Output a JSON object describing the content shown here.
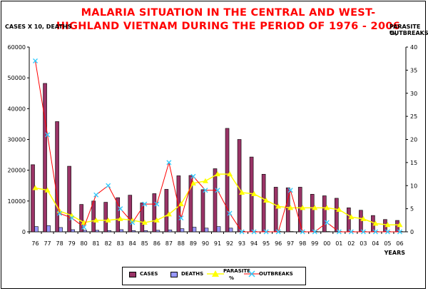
{
  "chart_data": {
    "type": "bar",
    "title_line1": "MALARIA SITUATION IN THE CENTRAL AND WEST-",
    "title_line2": "HIGHLAND VIETNAM DURING THE PERIOD OF 1976 - 2006",
    "ylabel_left": "CASES X 10, DEATHS",
    "ylabel_right_line1": "PARASITE %,",
    "ylabel_right_line2": "OUTBREAKS",
    "xlabel": "YEARS",
    "ylim_left": [
      0,
      60000
    ],
    "ylim_right": [
      0,
      40
    ],
    "yticks_left": [
      "0",
      "10000",
      "20000",
      "30000",
      "40000",
      "50000",
      "60000"
    ],
    "yticks_right": [
      "0",
      "5",
      "10",
      "15",
      "20",
      "25",
      "30",
      "35",
      "40"
    ],
    "categories": [
      "76",
      "77",
      "78",
      "79",
      "80",
      "81",
      "82",
      "83",
      "84",
      "85",
      "86",
      "87",
      "88",
      "89",
      "90",
      "91",
      "92",
      "93",
      "94",
      "95",
      "96",
      "97",
      "98",
      "99",
      "00",
      "01",
      "02",
      "03",
      "04",
      "05",
      "06"
    ],
    "series": [
      {
        "name": "CASES",
        "axis": "left",
        "kind": "bar",
        "color": "#993366",
        "values": [
          21800,
          48200,
          35800,
          21300,
          8900,
          10000,
          9600,
          11100,
          11900,
          9400,
          12400,
          13800,
          18200,
          18300,
          13700,
          20500,
          33600,
          30000,
          24300,
          18700,
          14500,
          14300,
          14500,
          12200,
          11700,
          10900,
          7800,
          7000,
          5300,
          4000,
          3700
        ]
      },
      {
        "name": "DEATHS",
        "axis": "left",
        "kind": "bar",
        "color": "#9999ff",
        "values": [
          1700,
          2000,
          1400,
          700,
          500,
          500,
          400,
          700,
          400,
          400,
          500,
          600,
          1000,
          1500,
          1200,
          1700,
          1200,
          200,
          100,
          100,
          100,
          100,
          100,
          100,
          100,
          100,
          100,
          100,
          100,
          100,
          100
        ]
      },
      {
        "name": "PARASITE %",
        "axis": "right",
        "kind": "line",
        "color": "#ffff00",
        "values": [
          9.5,
          9.0,
          4.5,
          3.5,
          2.0,
          2.5,
          2.5,
          2.8,
          2.5,
          2.0,
          2.5,
          3.8,
          6.0,
          10.5,
          11.0,
          12.5,
          12.5,
          8.5,
          8.2,
          6.8,
          5.5,
          5.2,
          5.2,
          5.2,
          5.2,
          4.8,
          3.2,
          2.8,
          1.8,
          1.5,
          1.5
        ]
      },
      {
        "name": "OUTBREAKS",
        "axis": "right",
        "kind": "line",
        "color": "#33ccff",
        "line_color": "#ff0000",
        "values": [
          37,
          21,
          4,
          3,
          1,
          8,
          10,
          5,
          2,
          6,
          6,
          15,
          3,
          12,
          9,
          9,
          4,
          0,
          0,
          0,
          0,
          9,
          0,
          0,
          2,
          0,
          0,
          0,
          0,
          0,
          0
        ]
      }
    ],
    "legend": {
      "placement": "bottom",
      "labels": [
        "CASES",
        "DEATHS",
        "PARASITE",
        "%",
        "OUTBREAKS"
      ]
    }
  }
}
